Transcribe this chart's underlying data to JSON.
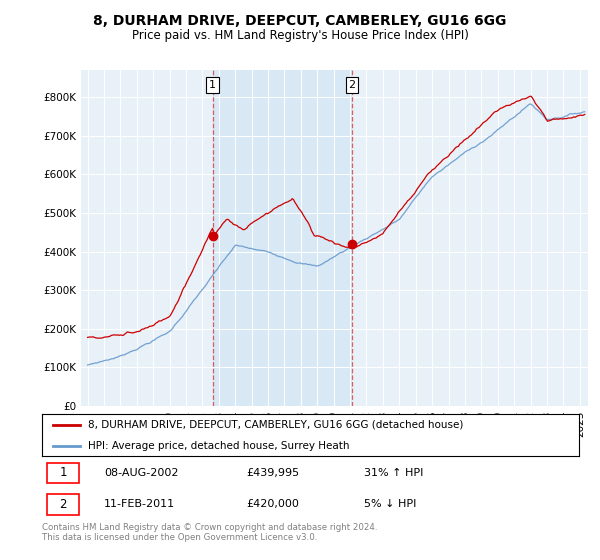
{
  "title": "8, DURHAM DRIVE, DEEPCUT, CAMBERLEY, GU16 6GG",
  "subtitle": "Price paid vs. HM Land Registry's House Price Index (HPI)",
  "ytick_values": [
    0,
    100000,
    200000,
    300000,
    400000,
    500000,
    600000,
    700000,
    800000
  ],
  "ylim": [
    0,
    870000
  ],
  "legend_line1": "8, DURHAM DRIVE, DEEPCUT, CAMBERLEY, GU16 6GG (detached house)",
  "legend_line2": "HPI: Average price, detached house, Surrey Heath",
  "transaction1_date": "08-AUG-2002",
  "transaction1_price": 439995,
  "transaction1_hpi": "31% ↑ HPI",
  "transaction2_date": "11-FEB-2011",
  "transaction2_price": 420000,
  "transaction2_hpi": "5% ↓ HPI",
  "footer": "Contains HM Land Registry data © Crown copyright and database right 2024.\nThis data is licensed under the Open Government Licence v3.0.",
  "red_color": "#cc0000",
  "blue_color": "#6699cc",
  "shade_color": "#d8e8f5",
  "background_color": "#e8f0f8",
  "plot_bg": "#ffffff",
  "vline_color": "#cc0000",
  "marker1_x": 2002.62,
  "marker1_y": 439995,
  "marker2_x": 2011.12,
  "marker2_y": 420000,
  "xlim_start": 1994.6,
  "xlim_end": 2025.5
}
